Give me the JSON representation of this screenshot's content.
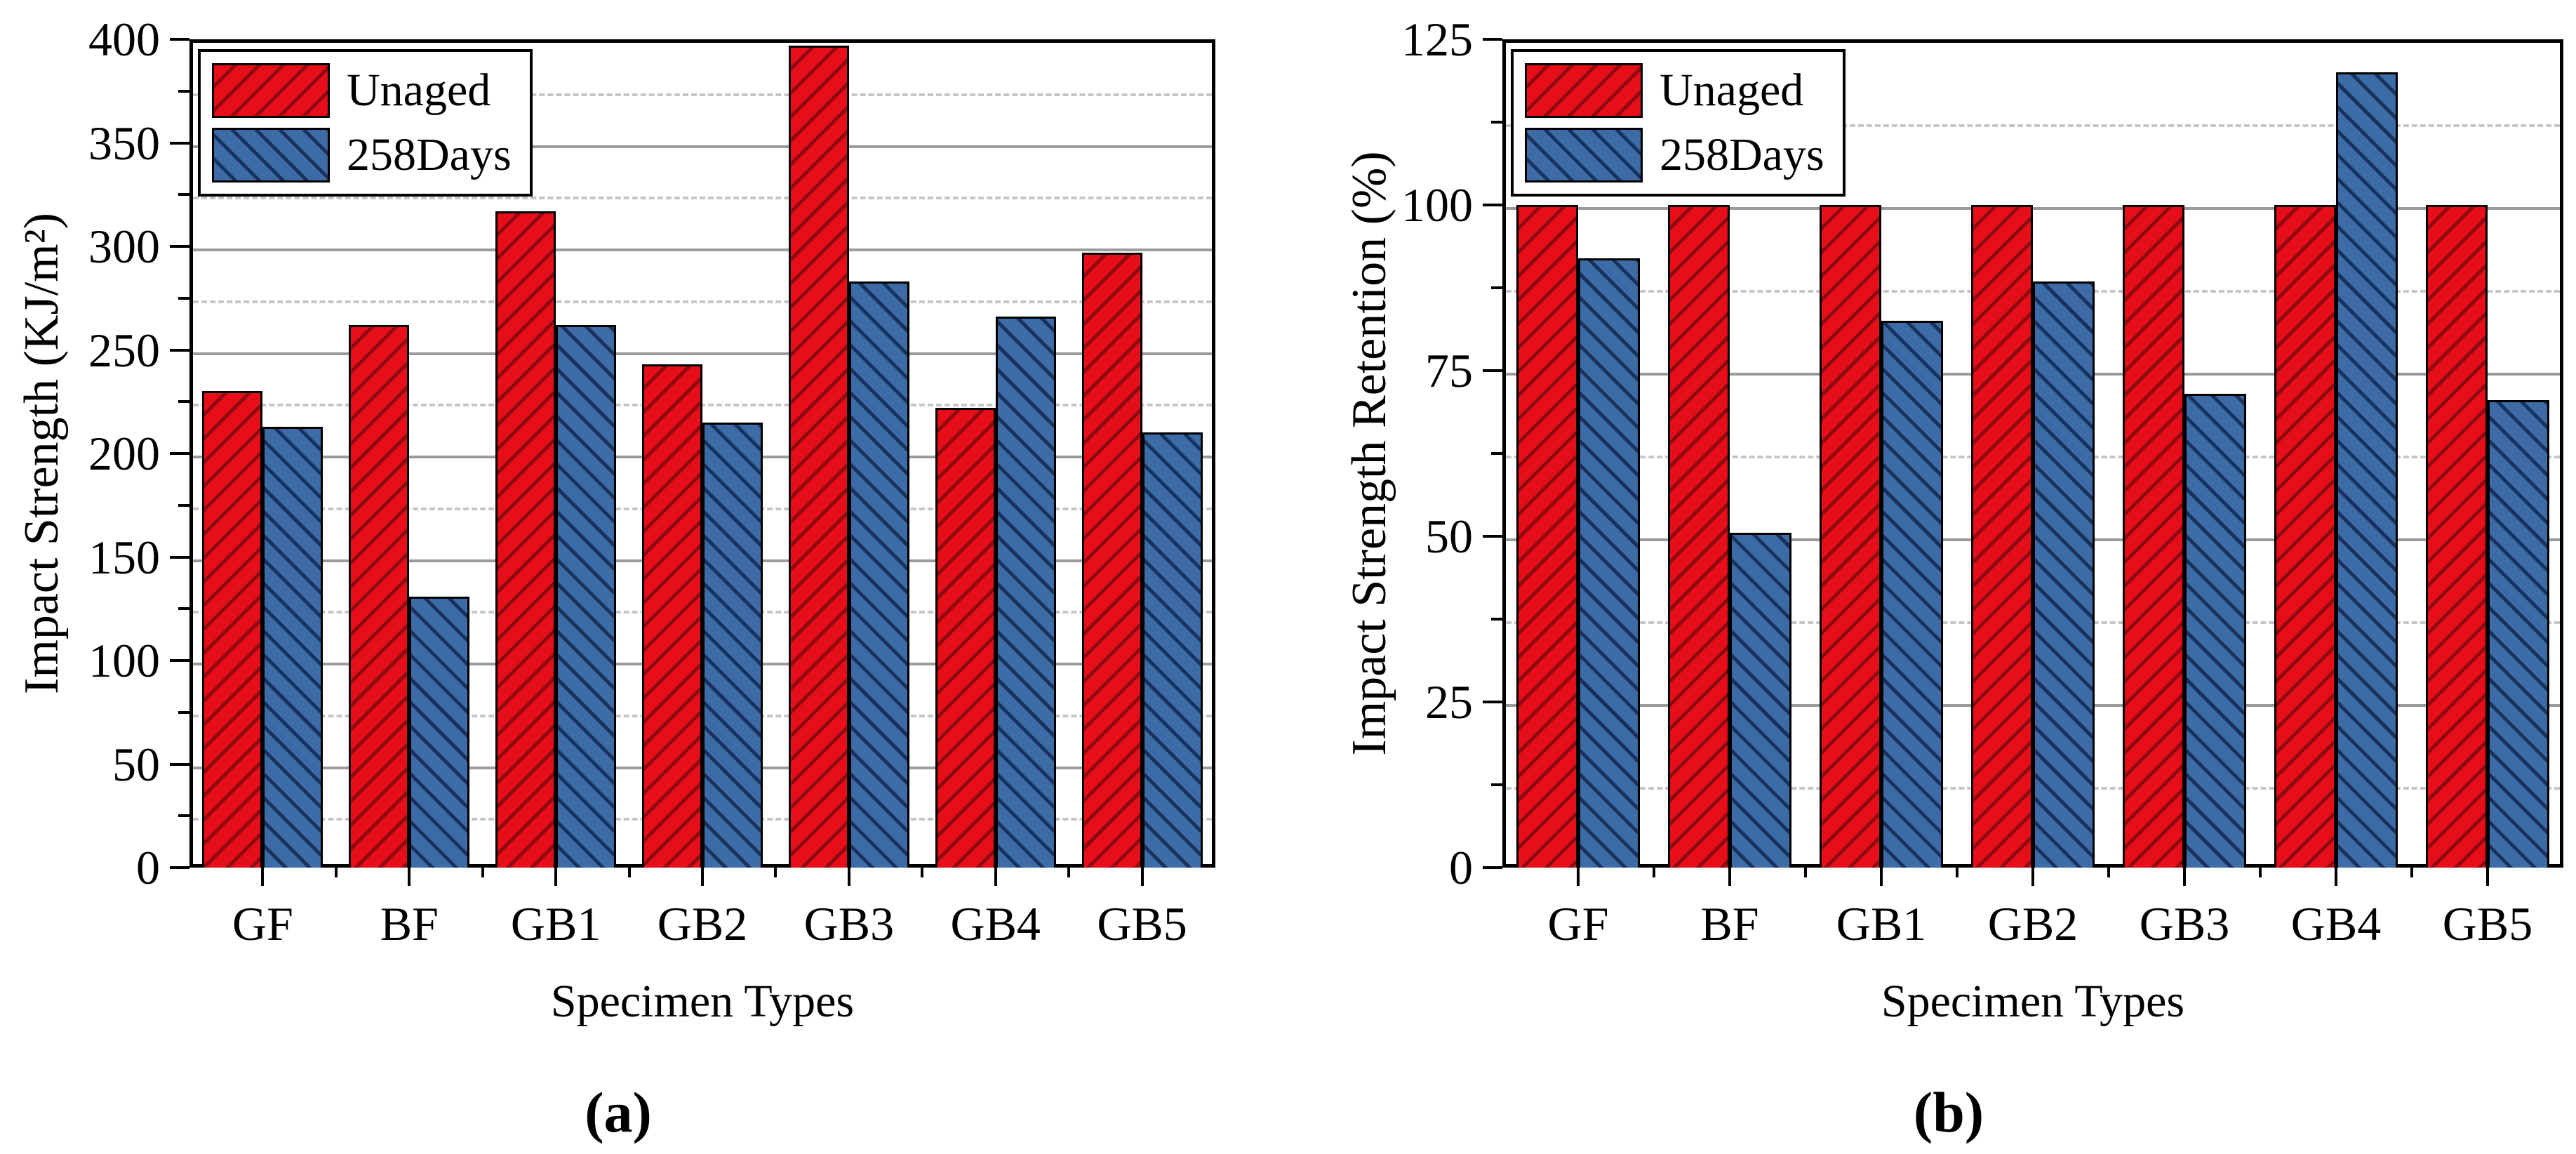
{
  "figure": {
    "background": "#ffffff",
    "panels": [
      "(a)",
      "(b)"
    ]
  },
  "colors": {
    "unaged_fill": "#e60e19",
    "unaged_hatch": "#8e0a10",
    "aged_fill": "#3d6ba5",
    "aged_hatch": "#17325f",
    "grid_major": "#9b9b9b",
    "grid_minor": "#c6c6c6",
    "axis": "#000000"
  },
  "chart_data": [
    {
      "type": "bar",
      "panel_label": "(a)",
      "title": "",
      "xlabel": "Specimen Types",
      "ylabel": "Impact Strength (KJ/m²)",
      "categories": [
        "GF",
        "BF",
        "GB1",
        "GB2",
        "GB3",
        "GB4",
        "GB5"
      ],
      "series": [
        {
          "name": "Unaged",
          "values": [
            230,
            262,
            317,
            243,
            397,
            222,
            297
          ]
        },
        {
          "name": "258Days",
          "values": [
            213,
            131,
            262,
            215,
            283,
            266,
            210
          ]
        }
      ],
      "ylim": [
        0,
        400
      ],
      "ytick_step": 50,
      "yminor_step": 25,
      "yticks": [
        "0",
        "50",
        "100",
        "150",
        "200",
        "250",
        "300",
        "350",
        "400"
      ],
      "grid": true,
      "legend_position": "top-left",
      "legend": [
        "Unaged",
        "258Days"
      ]
    },
    {
      "type": "bar",
      "panel_label": "(b)",
      "title": "",
      "xlabel": "Specimen Types",
      "ylabel": "Impact Strength Retention (%)",
      "categories": [
        "GF",
        "BF",
        "GB1",
        "GB2",
        "GB3",
        "GB4",
        "GB5"
      ],
      "series": [
        {
          "name": "Unaged",
          "values": [
            100,
            100,
            100,
            100,
            100,
            100,
            100
          ]
        },
        {
          "name": "258Days",
          "values": [
            92,
            50.5,
            82.5,
            88.5,
            71.5,
            120,
            70.5
          ]
        }
      ],
      "ylim": [
        0,
        125
      ],
      "ytick_step": 25,
      "yminor_step": 12.5,
      "yticks": [
        "0",
        "25",
        "50",
        "75",
        "100",
        "125"
      ],
      "grid": true,
      "legend_position": "top-left",
      "legend": [
        "Unaged",
        "258Days"
      ]
    }
  ]
}
